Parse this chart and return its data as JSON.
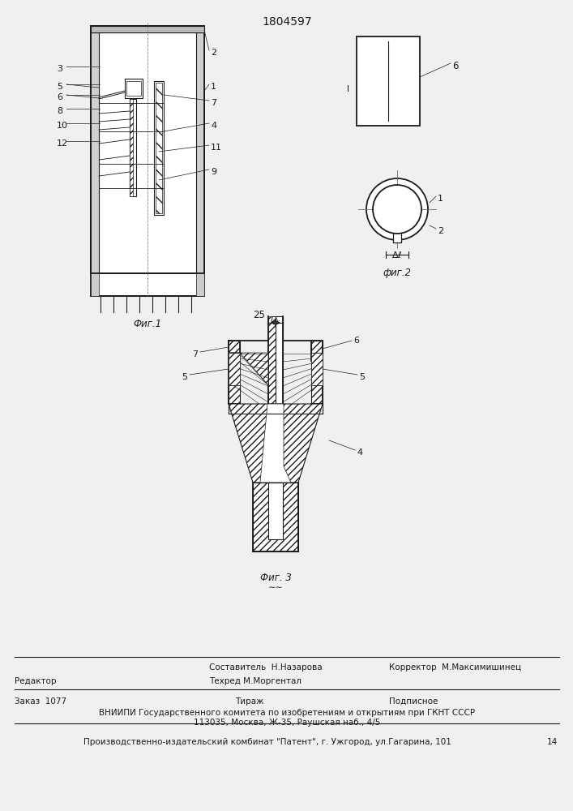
{
  "title": "1804597",
  "bg_color": "#f0f0f0",
  "line_color": "#1a1a1a",
  "fig1_caption": "Фиг.1",
  "fig2_caption": "фиг.2",
  "fig3_caption": "Фиг. 3",
  "footer_redaktor": "Редактор",
  "footer_sostavitel": "Составитель  Н.Назарова",
  "footer_tehred": "Техред М.Моргентал",
  "footer_korrektor": "Корректор  М.Максимишинец",
  "footer_zakaz": "Заказ  1077",
  "footer_tirazh": "Тираж",
  "footer_podpisnoe": "Подписное",
  "footer_vniiipi": "ВНИИПИ Государственного комитета по изобретениям и открытиям при ГКНТ СССР",
  "footer_address": "113035, Москва, Ж-35, Раушская наб., 4/5",
  "footer_publisher": "Производственно-издательский комбинат \"Патент\", г. Ужгород, ул.Гагарина, 101",
  "number_25": "25",
  "pagenum": "14"
}
